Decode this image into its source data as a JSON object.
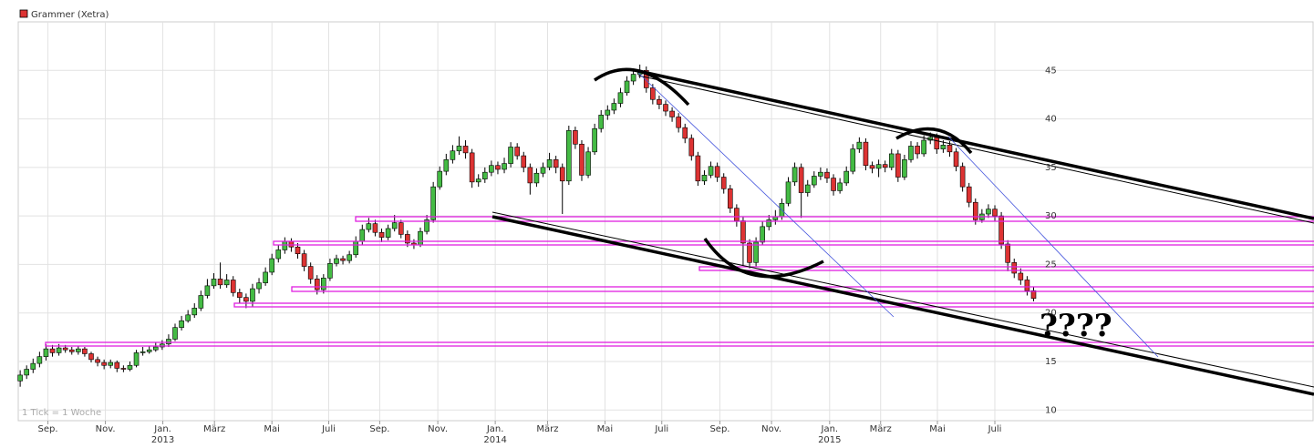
{
  "chart_data": {
    "type": "candlestick",
    "title": "Grammer (Xetra)",
    "note": "1 Tick = 1 Woche",
    "annotation": "????",
    "up_color": "#44bb44",
    "down_color": "#dd3333",
    "legend_color": "#dd3333",
    "ylim": [
      8.9,
      50
    ],
    "yticks": [
      10,
      15,
      20,
      25,
      30,
      35,
      40,
      45
    ],
    "grid": true,
    "xlim": [
      -0.3,
      200.3
    ],
    "xticks": [
      {
        "value": 4.3,
        "label": "Sep."
      },
      {
        "value": 13.2,
        "label": "Nov."
      },
      {
        "value": 22.1,
        "label": "Jan."
      },
      {
        "value": 30.1,
        "label": "März"
      },
      {
        "value": 39,
        "label": "Mai"
      },
      {
        "value": 47.8,
        "label": "Juli"
      },
      {
        "value": 55.7,
        "label": "Sep."
      },
      {
        "value": 64.7,
        "label": "Nov."
      },
      {
        "value": 73.6,
        "label": "Jan."
      },
      {
        "value": 81.7,
        "label": "März"
      },
      {
        "value": 90.6,
        "label": "Mai"
      },
      {
        "value": 99.4,
        "label": "Juli"
      },
      {
        "value": 108.4,
        "label": "Sep."
      },
      {
        "value": 116.4,
        "label": "Nov."
      },
      {
        "value": 125.4,
        "label": "Jan."
      },
      {
        "value": 133.3,
        "label": "März"
      },
      {
        "value": 142.1,
        "label": "Mai"
      },
      {
        "value": 151,
        "label": "Juli"
      }
    ],
    "year_ticks": [
      {
        "value": 22.1,
        "label": "2013"
      },
      {
        "value": 73.6,
        "label": "2014"
      },
      {
        "value": 125.4,
        "label": "2015"
      }
    ],
    "open": [
      13.0,
      13.6,
      14.2,
      14.8,
      15.5,
      16.3,
      15.9,
      16.4,
      16.2,
      16.0,
      16.3,
      15.8,
      15.2,
      14.9,
      14.6,
      14.9,
      14.3,
      14.2,
      14.6,
      15.9,
      16.0,
      16.2,
      16.5,
      16.8,
      17.3,
      18.5,
      19.2,
      19.8,
      20.5,
      21.8,
      22.8,
      23.5,
      22.9,
      23.4,
      22.1,
      21.6,
      21.2,
      22.5,
      23.1,
      24.2,
      25.6,
      26.5,
      27.4,
      26.8,
      26.1,
      24.8,
      23.5,
      22.4,
      23.6,
      25.1,
      25.6,
      25.4,
      26.0,
      27.4,
      28.6,
      29.2,
      28.3,
      27.8,
      28.7,
      29.3,
      28.1,
      27.2,
      27.0,
      28.4,
      29.6,
      33.0,
      34.6,
      35.8,
      36.7,
      37.2,
      36.5,
      33.5,
      33.8,
      34.5,
      35.2,
      34.8,
      35.4,
      37.1,
      36.2,
      35.0,
      33.4,
      34.4,
      35.0,
      35.8,
      35.0,
      33.6,
      38.8,
      37.4,
      34.2,
      36.6,
      39.0,
      40.4,
      40.9,
      41.6,
      42.7,
      43.9,
      44.6,
      45.0,
      43.2,
      42.0,
      41.5,
      40.8,
      40.2,
      39.1,
      38.0,
      36.2,
      33.6,
      34.2,
      35.1,
      34.0,
      32.8,
      30.8,
      29.5,
      27.2,
      25.2,
      27.3,
      28.9,
      29.6,
      29.9,
      31.3,
      33.5,
      35.0,
      32.4,
      33.2,
      34.1,
      34.5,
      33.9,
      32.6,
      33.4,
      34.6,
      36.9,
      37.6,
      35.2,
      34.9,
      35.3,
      35.0,
      36.4,
      34.0,
      35.8,
      37.2,
      36.4,
      37.8,
      38.1,
      36.9,
      37.3,
      36.6,
      35.1,
      33.0,
      31.4,
      29.6,
      30.2,
      30.7,
      30.0,
      27.1,
      25.2,
      24.1,
      23.4,
      22.3
    ],
    "high": [
      14.1,
      14.6,
      15.3,
      16.0,
      16.8,
      16.7,
      16.8,
      16.7,
      16.5,
      16.6,
      16.5,
      16.0,
      15.5,
      15.2,
      15.2,
      15.1,
      14.6,
      15.0,
      16.2,
      16.5,
      16.6,
      17.0,
      17.2,
      17.8,
      18.9,
      19.7,
      20.3,
      21.0,
      22.3,
      23.5,
      24.1,
      25.2,
      24.0,
      23.8,
      22.5,
      22.0,
      23.0,
      23.6,
      24.7,
      26.1,
      27.0,
      27.8,
      27.7,
      27.2,
      26.5,
      25.2,
      23.9,
      24.0,
      25.6,
      26.0,
      25.9,
      26.4,
      27.9,
      29.1,
      29.8,
      29.6,
      28.7,
      29.1,
      30.1,
      29.6,
      28.5,
      27.6,
      28.8,
      30.1,
      33.5,
      35.1,
      36.4,
      37.3,
      38.2,
      37.8,
      36.9,
      34.3,
      35.0,
      35.7,
      35.6,
      36.0,
      37.6,
      37.5,
      36.6,
      35.4,
      34.9,
      35.5,
      36.5,
      36.2,
      35.4,
      39.3,
      39.2,
      37.8,
      37.1,
      39.5,
      40.9,
      41.4,
      42.1,
      43.2,
      44.4,
      45.1,
      45.6,
      45.4,
      43.6,
      42.4,
      41.9,
      41.2,
      40.6,
      39.5,
      38.4,
      36.6,
      34.7,
      35.6,
      35.5,
      34.4,
      33.2,
      31.2,
      29.9,
      27.6,
      27.8,
      29.4,
      30.1,
      30.6,
      31.8,
      34.0,
      35.5,
      35.4,
      33.7,
      34.6,
      35.0,
      34.9,
      34.3,
      33.9,
      35.1,
      37.4,
      38.1,
      38.0,
      35.6,
      35.8,
      35.7,
      36.9,
      36.8,
      36.3,
      37.7,
      37.6,
      38.3,
      38.6,
      38.5,
      37.8,
      37.7,
      37.0,
      35.5,
      33.4,
      31.8,
      30.7,
      31.2,
      31.1,
      30.4,
      27.5,
      25.6,
      24.6,
      23.8,
      22.7
    ],
    "low": [
      12.4,
      13.2,
      13.8,
      14.4,
      15.1,
      15.5,
      15.6,
      15.9,
      15.7,
      15.7,
      15.5,
      14.9,
      14.5,
      14.2,
      14.3,
      13.9,
      13.9,
      14.0,
      14.4,
      15.6,
      15.8,
      16.0,
      16.2,
      16.5,
      17.1,
      18.2,
      19.0,
      19.5,
      20.2,
      21.5,
      22.5,
      22.5,
      22.6,
      21.7,
      21.0,
      20.5,
      20.6,
      22.0,
      22.8,
      23.9,
      25.2,
      26.1,
      26.3,
      25.6,
      24.3,
      23.0,
      21.9,
      22.0,
      23.3,
      24.8,
      25.0,
      25.1,
      25.7,
      27.0,
      28.3,
      27.9,
      27.3,
      27.5,
      28.4,
      27.7,
      26.8,
      26.6,
      26.8,
      28.1,
      29.3,
      32.7,
      34.2,
      35.4,
      36.3,
      35.9,
      32.9,
      33.0,
      33.4,
      34.1,
      34.3,
      34.4,
      35.0,
      35.8,
      34.5,
      32.2,
      33.0,
      34.0,
      34.7,
      34.4,
      30.2,
      33.2,
      36.9,
      33.6,
      33.9,
      36.3,
      38.6,
      39.9,
      40.5,
      41.2,
      42.4,
      43.5,
      44.2,
      42.7,
      41.5,
      41.0,
      40.3,
      39.7,
      38.6,
      37.5,
      35.7,
      33.1,
      33.2,
      33.9,
      33.5,
      32.3,
      30.3,
      28.9,
      24.9,
      24.6,
      24.8,
      27.0,
      28.5,
      29.1,
      29.6,
      31.0,
      33.1,
      29.8,
      32.0,
      32.9,
      33.7,
      33.4,
      32.1,
      32.3,
      33.1,
      34.3,
      36.5,
      34.7,
      34.4,
      34.0,
      34.5,
      34.7,
      33.5,
      33.7,
      35.5,
      35.9,
      36.1,
      37.4,
      36.4,
      36.5,
      36.1,
      34.6,
      32.5,
      30.9,
      29.1,
      29.3,
      29.8,
      29.5,
      26.6,
      24.3,
      23.6,
      22.9,
      21.8,
      21.2
    ],
    "close": [
      13.6,
      14.2,
      14.8,
      15.5,
      16.3,
      15.9,
      16.4,
      16.2,
      16.0,
      16.3,
      15.8,
      15.2,
      14.9,
      14.6,
      14.9,
      14.3,
      14.2,
      14.6,
      15.9,
      16.0,
      16.2,
      16.5,
      16.8,
      17.3,
      18.5,
      19.2,
      19.8,
      20.5,
      21.8,
      22.8,
      23.5,
      22.9,
      23.4,
      22.1,
      21.6,
      21.2,
      22.5,
      23.1,
      24.2,
      25.6,
      26.5,
      27.4,
      26.8,
      26.1,
      24.8,
      23.5,
      22.4,
      23.6,
      25.1,
      25.6,
      25.4,
      26.0,
      27.4,
      28.6,
      29.2,
      28.3,
      27.8,
      28.7,
      29.3,
      28.1,
      27.2,
      27.0,
      28.4,
      29.6,
      33.0,
      34.6,
      35.8,
      36.7,
      37.2,
      36.5,
      33.5,
      33.8,
      34.5,
      35.2,
      34.8,
      35.4,
      37.1,
      36.2,
      35.0,
      33.4,
      34.4,
      35.0,
      35.8,
      35.0,
      33.6,
      38.8,
      37.4,
      34.2,
      36.6,
      39.0,
      40.4,
      40.9,
      41.6,
      42.7,
      43.9,
      44.6,
      45.0,
      43.2,
      42.0,
      41.5,
      40.8,
      40.2,
      39.1,
      38.0,
      36.2,
      33.6,
      34.2,
      35.1,
      34.0,
      32.8,
      30.8,
      29.5,
      27.2,
      25.2,
      27.3,
      28.9,
      29.6,
      29.9,
      31.3,
      33.5,
      35.0,
      32.4,
      33.2,
      34.1,
      34.5,
      33.9,
      32.6,
      33.4,
      34.6,
      36.9,
      37.6,
      35.2,
      34.9,
      35.3,
      35.0,
      36.4,
      34.0,
      35.8,
      37.2,
      36.4,
      37.8,
      38.1,
      36.9,
      37.3,
      36.6,
      35.1,
      33.0,
      31.4,
      29.6,
      30.2,
      30.7,
      30.0,
      27.1,
      25.2,
      24.1,
      23.4,
      22.3,
      21.5
    ]
  }
}
